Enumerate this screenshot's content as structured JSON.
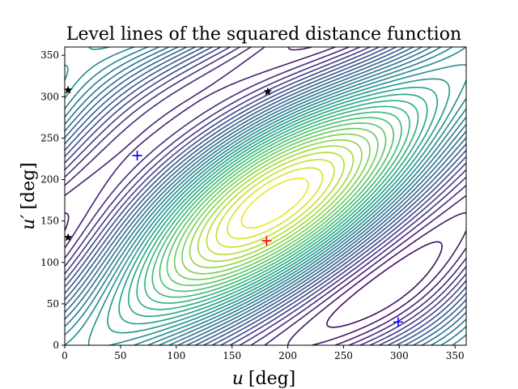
{
  "chart_data": {
    "type": "contour",
    "title": "Level lines of the squared distance function",
    "xlabel": {
      "var": "u",
      "unit": "[deg]"
    },
    "ylabel": {
      "var": "u′",
      "unit": "[deg]"
    },
    "xlim": [
      0,
      360
    ],
    "ylim": [
      0,
      360
    ],
    "xticks": [
      0,
      50,
      100,
      150,
      200,
      250,
      300,
      350
    ],
    "yticks": [
      0,
      50,
      100,
      150,
      200,
      250,
      300,
      350
    ],
    "colormap": "viridis",
    "markers": [
      {
        "type": "plus",
        "color": "#ff0000",
        "x": 181,
        "y": 126
      },
      {
        "type": "plus",
        "color": "#0000ff",
        "x": 65,
        "y": 229
      },
      {
        "type": "plus",
        "color": "#0000ff",
        "x": 299,
        "y": 28
      },
      {
        "type": "star",
        "color": "#000000",
        "x": 182,
        "y": 306
      },
      {
        "type": "star",
        "color": "#000000",
        "x": 3,
        "y": 308
      },
      {
        "type": "star",
        "color": "#000000",
        "x": 3,
        "y": 130
      }
    ]
  }
}
